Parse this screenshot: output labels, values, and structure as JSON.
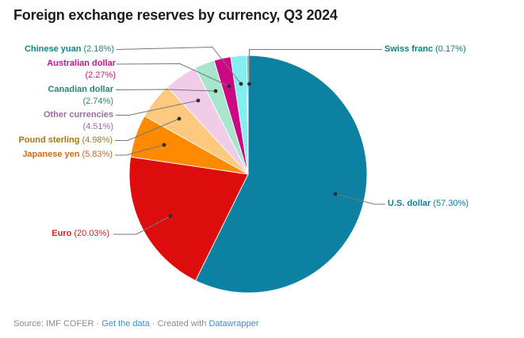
{
  "title": "Foreign exchange reserves by currency, Q3 2024",
  "footer": {
    "source": "Source: IMF COFER",
    "sep": "·",
    "get_data_label": "Get the data",
    "created_with": "Created with",
    "datawrapper_label": "Datawrapper"
  },
  "chart_data": {
    "type": "pie",
    "title": "Foreign exchange reserves by currency, Q3 2024",
    "unit": "%",
    "direction": "clockwise",
    "start_angle_deg": 0,
    "slices": [
      {
        "label": "U.S. dollar",
        "value": 57.3,
        "pct": "(57.30%)",
        "color": "#0d81a2",
        "label_color": "#0e7d9d"
      },
      {
        "label": "Euro",
        "value": 20.03,
        "pct": "(20.03%)",
        "color": "#de0d0d",
        "label_color": "#d42222"
      },
      {
        "label": "Japanese yen",
        "value": 5.83,
        "pct": "(5.83%)",
        "color": "#ff8a00",
        "label_color": "#cf6a15"
      },
      {
        "label": "Pound sterling",
        "value": 4.98,
        "pct": "(4.98%)",
        "color": "#fdc97f",
        "label_color": "#a3790f"
      },
      {
        "label": "Other currencies",
        "value": 4.51,
        "pct": "(4.51%)",
        "color": "#f1cce8",
        "label_color": "#9e6ba3"
      },
      {
        "label": "Canadian dollar",
        "value": 2.74,
        "pct": "(2.74%)",
        "color": "#a7e6cd",
        "label_color": "#2c8273"
      },
      {
        "label": "Australian dollar",
        "value": 2.27,
        "pct": "(2.27%)",
        "color": "#cd0887",
        "label_color": "#ce1089"
      },
      {
        "label": "Chinese yuan",
        "value": 2.18,
        "pct": "(2.18%)",
        "color": "#83eff0",
        "label_color": "#15868c"
      },
      {
        "label": "Swiss franc",
        "value": 0.17,
        "pct": "(0.17%)",
        "color": "#0e6e6e",
        "label_color": "#0c827c"
      }
    ]
  }
}
